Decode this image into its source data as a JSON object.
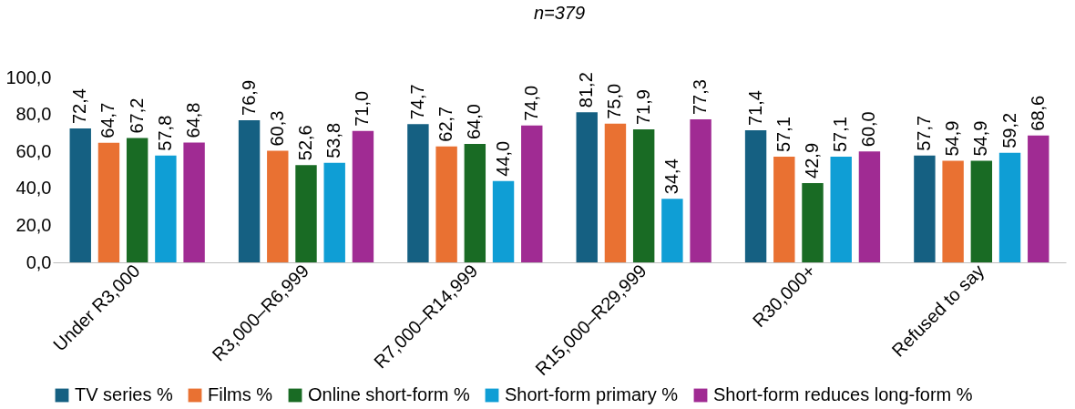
{
  "chart_data": {
    "type": "bar",
    "title": "n=379",
    "categories": [
      "Under R3,000",
      "R3,000–R6,999",
      "R7,000–R14,999",
      "R15,000–R29,999",
      "R30,000+",
      "Refused to say"
    ],
    "series": [
      {
        "name": "TV series %",
        "color": "#156082",
        "values": [
          72.4,
          76.9,
          74.7,
          81.2,
          71.4,
          57.7
        ],
        "value_labels": [
          "72,4",
          "76,9",
          "74,7",
          "81,2",
          "71,4",
          "57,7"
        ]
      },
      {
        "name": "Films %",
        "color": "#e97132",
        "values": [
          64.7,
          60.3,
          62.7,
          75.0,
          57.1,
          54.9
        ],
        "value_labels": [
          "64,7",
          "60,3",
          "62,7",
          "75,0",
          "57,1",
          "54,9"
        ]
      },
      {
        "name": "Online short-form %",
        "color": "#196b24",
        "values": [
          67.2,
          52.6,
          64.0,
          71.9,
          42.9,
          54.9
        ],
        "value_labels": [
          "67,2",
          "52,6",
          "64,0",
          "71,9",
          "42,9",
          "54,9"
        ]
      },
      {
        "name": "Short-form primary %",
        "color": "#0f9ed5",
        "values": [
          57.8,
          53.8,
          44.0,
          34.4,
          57.1,
          59.2
        ],
        "value_labels": [
          "57,8",
          "53,8",
          "44,0",
          "34,4",
          "57,1",
          "59,2"
        ]
      },
      {
        "name": "Short-form reduces long-form %",
        "color": "#a02b93",
        "values": [
          64.8,
          71.0,
          74.0,
          77.3,
          60.0,
          68.6
        ],
        "value_labels": [
          "64,8",
          "71,0",
          "74,0",
          "77,3",
          "60,0",
          "68,6"
        ]
      }
    ],
    "ylim": [
      0,
      100
    ],
    "yticks": [
      {
        "value": 0,
        "label": "0,0"
      },
      {
        "value": 20,
        "label": "20,0"
      },
      {
        "value": 40,
        "label": "40,0"
      },
      {
        "value": 60,
        "label": "60,0"
      },
      {
        "value": 80,
        "label": "80,0"
      },
      {
        "value": 100,
        "label": "100,0"
      }
    ],
    "legend": "bottom",
    "grid": false
  }
}
